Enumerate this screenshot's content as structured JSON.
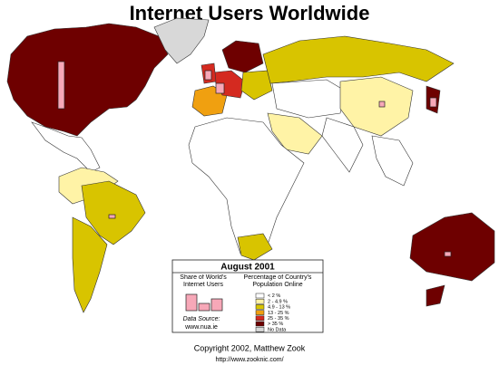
{
  "header": {
    "title": "Internet Users Worldwide"
  },
  "legend": {
    "title": "August 2001",
    "share_heading": "Share of World's Internet Users",
    "percent_heading": "Percentage of Country's Population Online",
    "source_label": "Data Source:",
    "source_url": "www.nua.ie",
    "classes": [
      {
        "label": "< 2 %",
        "color": "#ffffff"
      },
      {
        "label": "2 - 4.9 %",
        "color": "#fff3a6"
      },
      {
        "label": "4.9 - 13 %",
        "color": "#d8c400"
      },
      {
        "label": "13 - 25 %",
        "color": "#f0a010"
      },
      {
        "label": "25 - 35 %",
        "color": "#d42a20"
      },
      {
        "label": "> 35 %",
        "color": "#6e0000"
      },
      {
        "label": "No Data",
        "color": "#d8d8d8"
      }
    ]
  },
  "footer": {
    "copyright": "Copyright 2002, Matthew Zook",
    "url": "http://www.zooknic.com/"
  }
}
